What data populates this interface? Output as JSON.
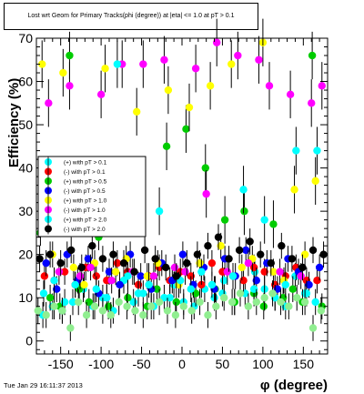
{
  "title": "Lost wrt Geom for Primary Tracks(phi (degree)) at |eta| <= 1.0 at pT > 0.1",
  "footer": "Tue Jan 29 16:11:37 2013",
  "chart_data": {
    "type": "scatter",
    "xlabel": "φ (degree)",
    "ylabel": "Efficiency (%)",
    "xlim": [
      -180,
      180
    ],
    "ylim": [
      -3,
      70
    ],
    "xticks": [
      -150,
      -100,
      -50,
      0,
      50,
      100,
      150
    ],
    "yticks": [
      0,
      10,
      20,
      30,
      40,
      50,
      60,
      70
    ],
    "grid": false,
    "legend_position": "left-middle",
    "series": [
      {
        "name": "(+) with pT > 0.1",
        "color": "#00ffff",
        "marker": "circle",
        "x": [
          -172,
          -160,
          -148,
          -135,
          -122,
          -110,
          -98,
          -85,
          -72,
          -60,
          -48,
          -35,
          -22,
          -10,
          2,
          15,
          28,
          40,
          52,
          65,
          78,
          90,
          102,
          115,
          128,
          140,
          152,
          165
        ],
        "y": [
          6,
          8,
          7,
          9,
          12,
          8,
          10,
          7,
          14,
          9,
          11,
          8,
          10,
          13,
          9,
          8,
          12,
          10,
          14,
          9,
          11,
          16,
          12,
          10,
          8,
          15,
          11,
          9
        ]
      },
      {
        "name": "(-) with pT > 0.1",
        "color": "#ff0000",
        "marker": "circle",
        "x": [
          -170,
          -158,
          -145,
          -132,
          -119,
          -106,
          -93,
          -80,
          -67,
          -54,
          -41,
          -28,
          -15,
          -2,
          11,
          24,
          37,
          50,
          63,
          76,
          89,
          102,
          115,
          128,
          141,
          154,
          167
        ],
        "y": [
          15,
          14,
          16,
          13,
          17,
          15,
          14,
          18,
          16,
          13,
          15,
          17,
          14,
          16,
          15,
          13,
          18,
          16,
          15,
          14,
          17,
          16,
          13,
          15,
          17,
          14,
          14
        ]
      },
      {
        "name": "(+) with pT > 0.5",
        "color": "#00cc00",
        "marker": "circle",
        "x": [
          -175,
          -163,
          -151,
          -139,
          -127,
          -115,
          -103,
          -91,
          -79,
          -67,
          -55,
          -43,
          -31,
          -19,
          -7,
          5,
          17,
          29,
          41,
          53,
          65,
          77,
          89,
          101,
          113,
          125,
          137,
          149,
          161,
          173
        ],
        "y": [
          25,
          10,
          8,
          66,
          12,
          9,
          24,
          8,
          33,
          10,
          35,
          8,
          12,
          45,
          9,
          49,
          11,
          40,
          12,
          28,
          9,
          30,
          11,
          8,
          27,
          10,
          12,
          9,
          66,
          8
        ]
      },
      {
        "name": "(-) with pT > 0.5",
        "color": "#0000ff",
        "marker": "circle",
        "x": [
          -168,
          -155,
          -142,
          -129,
          -116,
          -103,
          -90,
          -77,
          -64,
          -51,
          -38,
          -25,
          -12,
          1,
          14,
          27,
          40,
          53,
          66,
          79,
          92,
          105,
          118,
          131,
          144,
          157,
          170
        ],
        "y": [
          18,
          12,
          20,
          14,
          19,
          11,
          16,
          13,
          20,
          15,
          12,
          18,
          14,
          20,
          13,
          17,
          12,
          19,
          15,
          21,
          14,
          18,
          12,
          19,
          16,
          13,
          17
        ]
      },
      {
        "name": "(+) with pT > 1.0",
        "color": "#ffff00",
        "marker": "circle",
        "x": [
          -173,
          -160,
          -147,
          -134,
          -121,
          -108,
          -95,
          -82,
          -69,
          -56,
          -43,
          -30,
          -17,
          -4,
          9,
          22,
          35,
          48,
          61,
          74,
          87,
          100,
          113,
          126,
          139,
          152,
          165
        ],
        "y": [
          64,
          20,
          62,
          17,
          13,
          18,
          63,
          16,
          19,
          53,
          15,
          18,
          58,
          13,
          54,
          18,
          59,
          22,
          64,
          17,
          19,
          69,
          16,
          14,
          35,
          20,
          37
        ]
      },
      {
        "name": "(-) with pT > 1.0",
        "color": "#ff00ff",
        "marker": "circle",
        "x": [
          -165,
          -152,
          -139,
          -126,
          -113,
          -100,
          -87,
          -74,
          -61,
          -48,
          -35,
          -22,
          -9,
          4,
          17,
          30,
          43,
          56,
          69,
          82,
          95,
          108,
          121,
          134,
          147,
          160,
          173
        ],
        "y": [
          55,
          16,
          59,
          15,
          17,
          57,
          14,
          64,
          16,
          64,
          15,
          65,
          17,
          16,
          63,
          34,
          69,
          16,
          66,
          18,
          65,
          59,
          16,
          57,
          15,
          55,
          59
        ]
      },
      {
        "name": "(+) with pT > 2.0",
        "color": "#00ffff",
        "marker": "circle",
        "x": [
          -171,
          -158,
          -145,
          -132,
          -119,
          -106,
          -93,
          -80,
          -67,
          -54,
          -41,
          -28,
          -15,
          -2,
          11,
          24,
          37,
          50,
          63,
          76,
          89,
          102,
          115,
          128,
          141,
          154,
          167
        ],
        "y": [
          11,
          14,
          9,
          13,
          31,
          12,
          10,
          64,
          15,
          11,
          13,
          30,
          10,
          14,
          12,
          16,
          13,
          11,
          15,
          35,
          12,
          28,
          10,
          13,
          44,
          11,
          44
        ]
      },
      {
        "name": "(-) with pT > 2.0",
        "color": "#000000",
        "marker": "circle",
        "x": [
          -176,
          -163,
          -150,
          -137,
          -124,
          -111,
          -98,
          -85,
          -72,
          -59,
          -46,
          -33,
          -20,
          -7,
          6,
          19,
          32,
          45,
          58,
          71,
          84,
          97,
          110,
          123,
          136,
          149,
          162,
          175
        ],
        "y": [
          19,
          20,
          18,
          21,
          17,
          22,
          19,
          20,
          18,
          16,
          21,
          19,
          17,
          15,
          18,
          20,
          22,
          24,
          19,
          21,
          23,
          20,
          18,
          22,
          19,
          17,
          21,
          20
        ]
      },
      {
        "name": "",
        "color": "#90ee90",
        "marker": "circle",
        "x": [
          -178,
          -168,
          -158,
          -148,
          -138,
          -128,
          -118,
          -108,
          -98,
          -88,
          -78,
          -68,
          -58,
          -48,
          -38,
          -28,
          -18,
          -8,
          2,
          12,
          22,
          32,
          42,
          52,
          62,
          72,
          82,
          92,
          102,
          112,
          122,
          132,
          142,
          152,
          162,
          172
        ],
        "y": [
          7,
          6,
          8,
          7,
          3,
          9,
          6,
          8,
          7,
          6,
          9,
          8,
          7,
          6,
          8,
          9,
          7,
          6,
          8,
          7,
          9,
          6,
          8,
          10,
          9,
          11,
          8,
          9,
          10,
          11,
          9,
          8,
          10,
          9,
          3,
          7
        ]
      }
    ]
  },
  "legend": {
    "entries": [
      {
        "label": "(+) with pT > 0.1",
        "color": "#00ffff"
      },
      {
        "label": "(-) with pT > 0.1",
        "color": "#ff0000"
      },
      {
        "label": "(+) with pT > 0.5",
        "color": "#00cc00"
      },
      {
        "label": "(-) with pT > 0.5",
        "color": "#0000ff"
      },
      {
        "label": "(+) with pT > 1.0",
        "color": "#ffff00"
      },
      {
        "label": "(-) with pT > 1.0",
        "color": "#ff00ff"
      },
      {
        "label": "(+) with pT > 2.0",
        "color": "#00ffff"
      },
      {
        "label": "(-) with pT > 2.0",
        "color": "#000000"
      }
    ]
  }
}
